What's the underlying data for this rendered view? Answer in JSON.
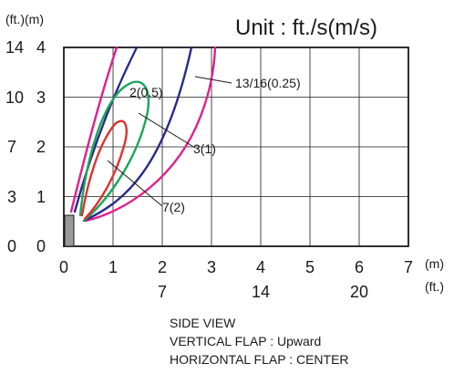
{
  "unit_label": "Unit  : ft./s(m/s)",
  "y_axis": {
    "unit_label": "(ft.)(m)",
    "ft_ticks": [
      "0",
      "3",
      "7",
      "10",
      "14"
    ],
    "m_ticks": [
      "0",
      "1",
      "2",
      "3",
      "4"
    ]
  },
  "x_axis": {
    "m_ticks": [
      "0",
      "1",
      "2",
      "3",
      "4",
      "5",
      "6",
      "7"
    ],
    "ft_ticks": [
      "7",
      "14",
      "20"
    ],
    "m_unit": "(m)",
    "ft_unit": "(ft.)"
  },
  "curve_labels": [
    {
      "text": "2(0.5)",
      "color": "#2a2a8a"
    },
    {
      "text": "13/16(0.25)",
      "color": "#e0208c"
    },
    {
      "text": "3(1)",
      "color": "#1aa55a"
    },
    {
      "text": "7(2)",
      "color": "#e0302e"
    }
  ],
  "caption": {
    "line1": "SIDE VIEW",
    "line2": "VERTICAL FLAP : Upward",
    "line3": "HORIZONTAL FLAP : CENTER"
  },
  "colors": {
    "velocity_2_0_5": "#2a2a8a",
    "velocity_13_16_0_25": "#e0208c",
    "velocity_3_1": "#1aa55a",
    "velocity_7_2": "#e0302e",
    "unit_block": "#9a9a9a"
  }
}
